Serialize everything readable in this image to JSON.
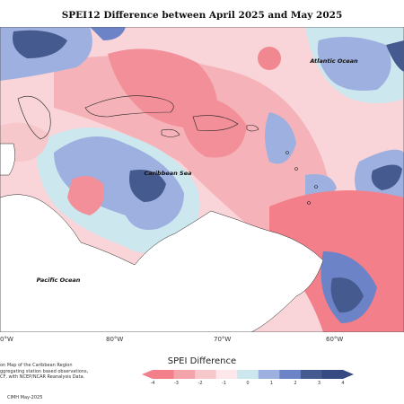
{
  "title": "SPEI12 Difference between April 2025 and May 2025",
  "map_labels": {
    "atlantic": "Atlantic Ocean",
    "caribbean": "Caribbean Sea",
    "pacific": "Pacific Ocean"
  },
  "longitudes": [
    "80°W",
    "70°W",
    "60°W"
  ],
  "partial_lon_left": "0°W",
  "legend": {
    "title": "SPEI Difference",
    "ticks": [
      "-4",
      "-3",
      "-2",
      "-1",
      "0",
      "1",
      "2",
      "3",
      "4"
    ],
    "colors": [
      "#f27f8a",
      "#f3a4ab",
      "#f6c7cb",
      "#fde7ea",
      "#cde7ef",
      "#9eb0e0",
      "#6c83c7",
      "#455b8f",
      "#354a82"
    ]
  },
  "footnote_lines": [
    "on Map of the Caribbean Region",
    "ggregating station based observations,",
    "CF, with NCEP/NCAR Reanalysis Data."
  ],
  "credit": "CIMH May-2025"
}
